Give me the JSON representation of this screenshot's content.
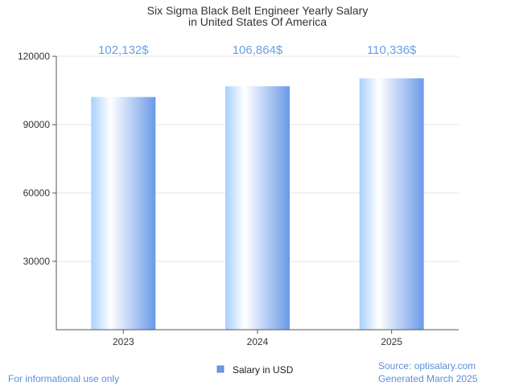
{
  "chart_data": {
    "type": "bar",
    "title": "Six Sigma Black Belt Engineer Yearly Salary",
    "subtitle": "in United States Of America",
    "categories": [
      "2023",
      "2024",
      "2025"
    ],
    "series": [
      {
        "name": "Salary in USD",
        "values": [
          102132,
          106864,
          110336
        ],
        "data_labels": [
          "102,132$",
          "106,864$",
          "110,336$"
        ]
      }
    ],
    "ylim": [
      0,
      120000
    ],
    "yticks": [
      30000,
      60000,
      90000,
      120000
    ],
    "ytick_labels": [
      "30000",
      "60000",
      "90000",
      "120000"
    ],
    "grid": true,
    "legend": "bottom-center",
    "colors": {
      "bar_light": "#ffffff",
      "bar_mid": "#a8d0ff",
      "bar_dark": "#6a9ae8",
      "label": "#6a9ee6",
      "grid": "#e4e4e4",
      "axis": "#555555"
    }
  },
  "footer": {
    "note": "For informational use only",
    "source": "Source: optisalary.com",
    "generated": "Generated March 2025"
  }
}
